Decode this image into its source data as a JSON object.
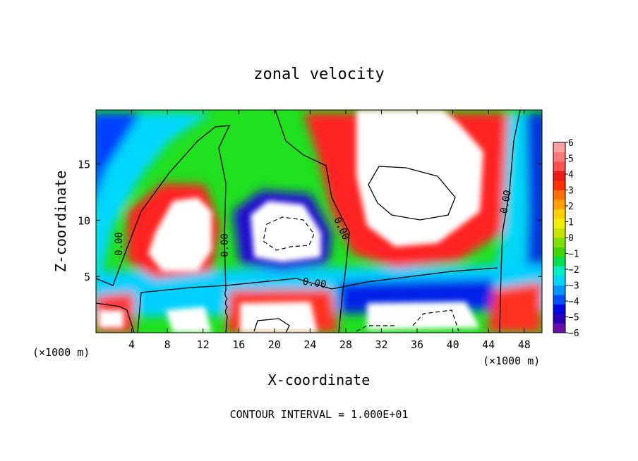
{
  "chart_data": {
    "type": "heatmap",
    "title": "zonal velocity",
    "xlabel": "X-coordinate",
    "ylabel": "Z-coordinate",
    "x_unit_left": "(×1000 m)",
    "x_unit_right": "(×1000 m)",
    "xlim": [
      0,
      50
    ],
    "ylim": [
      0,
      19.8
    ],
    "x_ticks": [
      4,
      8,
      12,
      16,
      20,
      24,
      28,
      32,
      36,
      40,
      44,
      48
    ],
    "y_ticks": [
      5,
      10,
      15
    ],
    "colorbar": {
      "range": [
        -6,
        6
      ],
      "ticks": [
        6,
        5,
        4,
        3,
        2,
        1,
        0,
        -1,
        -2,
        -3,
        -4,
        -5,
        -6
      ],
      "colors": [
        "#6a0dad",
        "#2a00b8",
        "#0008e8",
        "#0050ff",
        "#0098ff",
        "#00d4ff",
        "#00eec0",
        "#00e050",
        "#40d800",
        "#80e000",
        "#c8e400",
        "#f0f000",
        "#ffd000",
        "#ffa000",
        "#ff7000",
        "#ff3000",
        "#f01818",
        "#ff5050",
        "#ff7878",
        "#ffa0a0"
      ]
    },
    "contour_labels": [
      "0.00",
      "0.00",
      "0.00",
      "0.00",
      "0.00"
    ],
    "footer": "CONTOUR INTERVAL = 1.000E+01"
  }
}
